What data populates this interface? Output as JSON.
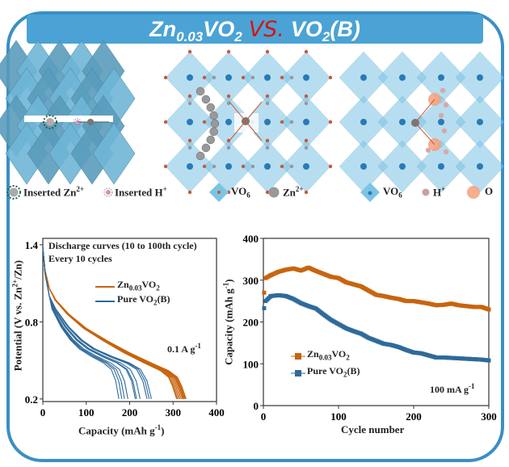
{
  "title": {
    "part1": "Zn",
    "sub1": "0.03",
    "part2": "VO",
    "sub2": "2",
    "vs": "VS.",
    "part3": "VO",
    "sub3": "2",
    "part4": "(B)"
  },
  "legends": {
    "left": [
      {
        "label": "Inserted Zn",
        "sup": "2+"
      },
      {
        "label": "Inserted H",
        "sup": "+"
      }
    ],
    "middle": [
      {
        "label": "VO",
        "sub": "6"
      },
      {
        "label": "Zn",
        "sup": "2+"
      }
    ],
    "right": [
      {
        "label": "VO",
        "sub": "6"
      },
      {
        "label": "H",
        "sup": "+"
      },
      {
        "label": "O"
      }
    ]
  },
  "colors": {
    "frame": "#3a8fc4",
    "banner": "#4aa3d4",
    "vs": "#dd1111",
    "zn_series": "#c8640e",
    "vo2_series": "#2e6a9a",
    "polyhedra": "#7cc4e4",
    "oxygen": "#c8583a",
    "zn_ion": "#888888",
    "h_ion": "#d8a8a8",
    "o_glow": "#f4a07a"
  },
  "chart_data": [
    {
      "type": "line",
      "title": "",
      "annotation_lines": [
        "Discharge curves (10 to 100th cycle)",
        "Every 10 cycles"
      ],
      "rate_label": "0.1 A g",
      "rate_sup": "-1",
      "xlabel": "Capacity (mAh g",
      "xlabel_sup": "-1",
      "xlabel_end": ")",
      "ylabel": "Potential (V vs. Zn",
      "ylabel_sup": "2+",
      "ylabel_end": "/Zn)",
      "xlim": [
        0,
        400
      ],
      "ylim": [
        0.18,
        1.45
      ],
      "xticks": [
        0,
        100,
        200,
        300,
        400
      ],
      "yticks": [
        0.2,
        0.8,
        1.4
      ],
      "legend_placement": "top-center",
      "series": [
        {
          "name": "Zn0.03VO2",
          "name_main": "Zn",
          "name_sub": "0.03",
          "name_end": "VO",
          "name_sub2": "2",
          "color": "#c8640e",
          "base_curve": [
            [
              0,
              1.38
            ],
            [
              5,
              1.2
            ],
            [
              15,
              1.06
            ],
            [
              30,
              0.97
            ],
            [
              60,
              0.86
            ],
            [
              100,
              0.75
            ],
            [
              150,
              0.65
            ],
            [
              200,
              0.56
            ],
            [
              250,
              0.48
            ],
            [
              290,
              0.42
            ],
            [
              310,
              0.37
            ],
            [
              320,
              0.3
            ],
            [
              330,
              0.2
            ]
          ],
          "end_capacities": [
            308,
            310,
            313,
            316,
            319,
            322,
            324,
            326,
            328,
            330
          ]
        },
        {
          "name": "Pure VO2(B)",
          "name_main": "Pure VO",
          "name_sub": "2",
          "name_end": "(B)",
          "color": "#2e6a9a",
          "base_curve": [
            [
              0,
              1.38
            ],
            [
              5,
              1.18
            ],
            [
              15,
              1.0
            ],
            [
              30,
              0.9
            ],
            [
              60,
              0.76
            ],
            [
              90,
              0.66
            ],
            [
              120,
              0.59
            ],
            [
              160,
              0.53
            ],
            [
              200,
              0.48
            ],
            [
              225,
              0.43
            ],
            [
              240,
              0.34
            ],
            [
              250,
              0.2
            ]
          ],
          "end_capacities": [
            175,
            182,
            188,
            196,
            213,
            216,
            224,
            240,
            245,
            250
          ]
        }
      ]
    },
    {
      "type": "scatter",
      "title": "",
      "rate_label": "100 mA g",
      "rate_sup": "-1",
      "xlabel": "Cycle number",
      "ylabel": "Capacity (mAh g",
      "ylabel_sup": "-1",
      "ylabel_end": ")",
      "xlim": [
        0,
        300
      ],
      "ylim": [
        0,
        400
      ],
      "xticks": [
        0,
        100,
        200,
        300
      ],
      "yticks": [
        0,
        100,
        200,
        300,
        400
      ],
      "legend_placement": "bottom-left",
      "x": [
        1,
        3,
        10,
        20,
        30,
        40,
        50,
        60,
        70,
        80,
        90,
        100,
        110,
        120,
        130,
        140,
        150,
        160,
        170,
        180,
        190,
        200,
        210,
        220,
        230,
        240,
        250,
        260,
        270,
        280,
        290,
        300
      ],
      "series": [
        {
          "name": "Zn0.03VO2",
          "name_main": "Zn",
          "name_sub": "0.03",
          "name_end": "VO",
          "name_sub2": "2",
          "color": "#c8640e",
          "values": [
            270,
            305,
            312,
            320,
            325,
            328,
            323,
            330,
            322,
            315,
            308,
            305,
            295,
            290,
            285,
            275,
            265,
            262,
            258,
            255,
            250,
            250,
            247,
            244,
            240,
            241,
            244,
            240,
            238,
            236,
            236,
            230
          ]
        },
        {
          "name": "Pure VO2(B)",
          "name_main": "Pure VO",
          "name_sub": "2",
          "name_end": "(B)",
          "color": "#2e6a9a",
          "values": [
            233,
            250,
            262,
            264,
            262,
            255,
            245,
            238,
            232,
            218,
            205,
            195,
            185,
            178,
            172,
            162,
            155,
            148,
            145,
            140,
            133,
            127,
            125,
            120,
            115,
            115,
            114,
            113,
            112,
            111,
            110,
            108
          ]
        }
      ]
    }
  ]
}
